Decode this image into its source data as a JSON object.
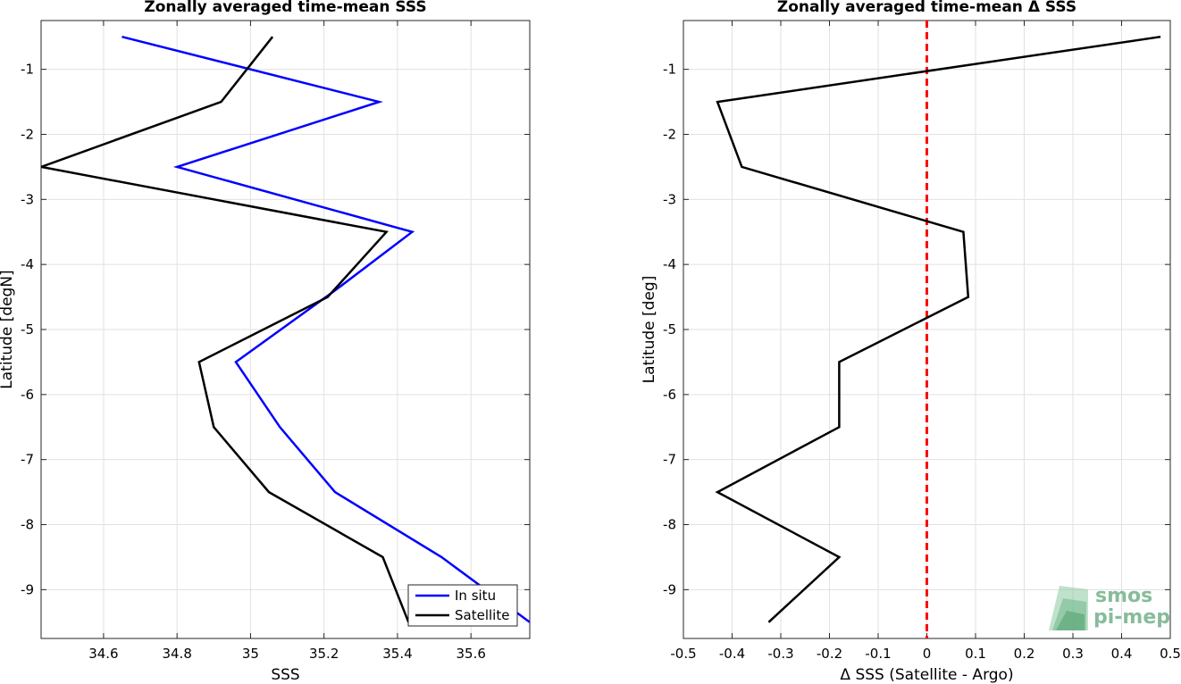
{
  "chart_data": [
    {
      "type": "line",
      "title": "Zonally averaged time-mean SSS",
      "xlabel": "SSS",
      "ylabel": "Latitude [degN]",
      "xlim": [
        34.43,
        35.76
      ],
      "ylim": [
        -9.75,
        -0.25
      ],
      "xticks": [
        34.6,
        34.8,
        35,
        35.2,
        35.4,
        35.6
      ],
      "xtick_labels": [
        "34.6",
        "34.8",
        "35",
        "35.2",
        "35.4",
        "35.6"
      ],
      "yticks": [
        -1,
        -2,
        -3,
        -4,
        -5,
        -6,
        -7,
        -8,
        -9
      ],
      "ytick_labels": [
        "-1",
        "-2",
        "-3",
        "-4",
        "-5",
        "-6",
        "-7",
        "-8",
        "-9"
      ],
      "grid": true,
      "legend_position": "bottom-right",
      "series": [
        {
          "name": "In situ",
          "color": "#0000ff",
          "x": [
            34.65,
            35.35,
            34.8,
            35.44,
            35.23,
            34.96,
            35.08,
            35.23,
            35.52,
            35.76
          ],
          "y": [
            -0.5,
            -1.5,
            -2.5,
            -3.5,
            -4.4,
            -5.5,
            -6.5,
            -7.5,
            -8.5,
            -9.5
          ]
        },
        {
          "name": "Satellite",
          "color": "#000000",
          "x": [
            35.06,
            34.92,
            34.43,
            35.37,
            35.21,
            34.86,
            34.9,
            35.05,
            35.36,
            35.43
          ],
          "y": [
            -0.5,
            -1.5,
            -2.5,
            -3.5,
            -4.5,
            -5.5,
            -6.5,
            -7.5,
            -8.5,
            -9.5
          ]
        }
      ]
    },
    {
      "type": "line",
      "title": "Zonally averaged time-mean Δ SSS",
      "xlabel": "Δ SSS (Satellite - Argo)",
      "ylabel": "Latitude [deg]",
      "xlim": [
        -0.5,
        0.5
      ],
      "ylim": [
        -9.75,
        -0.25
      ],
      "xticks": [
        -0.5,
        -0.4,
        -0.3,
        -0.2,
        -0.1,
        0,
        0.1,
        0.2,
        0.3,
        0.4,
        0.5
      ],
      "xtick_labels": [
        "-0.5",
        "-0.4",
        "-0.3",
        "-0.2",
        "-0.1",
        "0",
        "0.1",
        "0.2",
        "0.3",
        "0.4",
        "0.5"
      ],
      "yticks": [
        -1,
        -2,
        -3,
        -4,
        -5,
        -6,
        -7,
        -8,
        -9
      ],
      "ytick_labels": [
        "-1",
        "-2",
        "-3",
        "-4",
        "-5",
        "-6",
        "-7",
        "-8",
        "-9"
      ],
      "grid": true,
      "reference_line": {
        "x": 0,
        "color": "#ff0000",
        "style": "dashed"
      },
      "series": [
        {
          "color": "#000000",
          "x": [
            0.48,
            -0.43,
            -0.38,
            0.075,
            0.085,
            -0.18,
            -0.18,
            -0.43,
            -0.18,
            -0.325
          ],
          "y": [
            -0.5,
            -1.5,
            -2.5,
            -3.5,
            -4.5,
            -5.5,
            -6.5,
            -7.5,
            -8.5,
            -9.5
          ]
        }
      ]
    }
  ],
  "logo": {
    "line1": "smos",
    "line2": "pi-mep",
    "color": "#5fa67a"
  }
}
